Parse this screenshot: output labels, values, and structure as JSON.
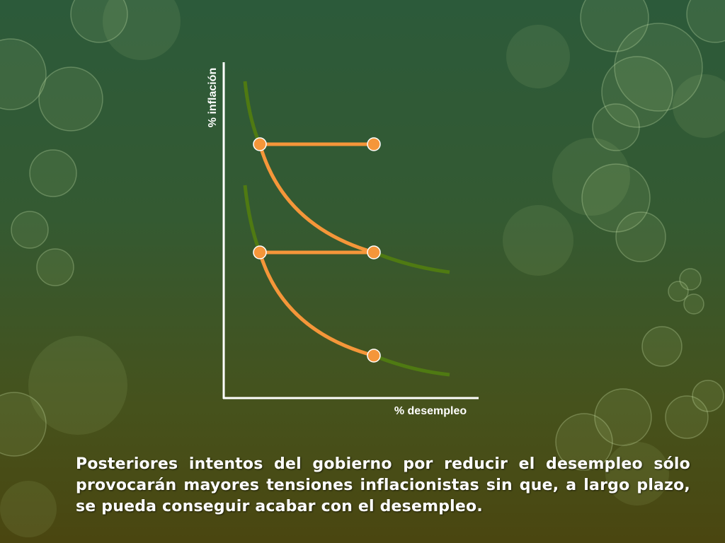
{
  "diagram": {
    "y_axis_label": "% inflación",
    "x_axis_label": "% desempleo"
  },
  "body": {
    "text": "Posteriores intentos del gobierno por reducir el desempleo sólo provocarán mayores tensiones inflacionistas sin que, a largo plazo, se pueda conseguir acabar con el desempleo."
  }
}
